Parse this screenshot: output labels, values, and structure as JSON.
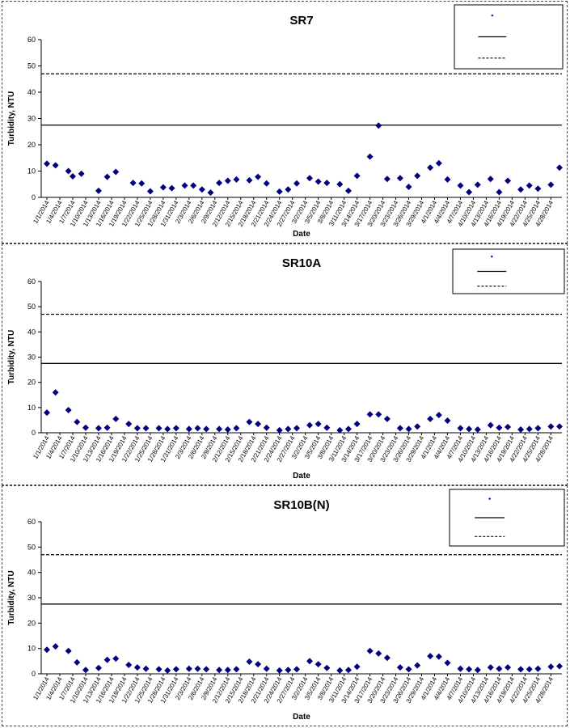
{
  "chart_data": [
    {
      "type": "scatter",
      "title": "SR7",
      "xlabel": "Date",
      "ylabel": "Turbidity, NTU",
      "ylim": [
        0,
        60
      ],
      "yticks": [
        0,
        10,
        20,
        30,
        40,
        50,
        60
      ],
      "grid": false,
      "legend_position": "top-right",
      "x_tick_labels": [
        "1/1/2014",
        "1/4/2014",
        "1/7/2014",
        "1/10/2014",
        "1/13/2014",
        "1/16/2014",
        "1/19/2014",
        "1/22/2014",
        "1/25/2014",
        "1/28/2014",
        "1/31/2014",
        "2/3/2014",
        "2/6/2014",
        "2/9/2014",
        "2/12/2014",
        "2/15/2014",
        "2/18/2014",
        "2/21/2014",
        "2/24/2014",
        "2/27/2014",
        "3/2/2014",
        "3/5/2014",
        "3/8/2014",
        "3/11/2014",
        "3/14/2014",
        "3/17/2014",
        "3/20/2014",
        "3/23/2014",
        "3/26/2014",
        "3/29/2014",
        "4/1/2014",
        "4/4/2014",
        "4/7/2014",
        "4/10/2014",
        "4/13/2014",
        "4/16/2014",
        "4/19/2014",
        "4/22/2014",
        "4/25/2014",
        "4/28/2014"
      ],
      "reference_lines": [
        {
          "value": 47,
          "style": "dashed",
          "color": "#000000"
        },
        {
          "value": 27.5,
          "style": "solid",
          "color": "#000000"
        }
      ],
      "series": [
        {
          "color": "#000080",
          "marker": "diamond",
          "points": [
            [
              "1/1/2014",
              12.8
            ],
            [
              "1/3/2014",
              12.2
            ],
            [
              "1/6/2014",
              10
            ],
            [
              "1/7/2014",
              8
            ],
            [
              "1/9/2014",
              9
            ],
            [
              "1/13/2014",
              2.5
            ],
            [
              "1/15/2014",
              7.8
            ],
            [
              "1/17/2014",
              9.7
            ],
            [
              "1/21/2014",
              5.5
            ],
            [
              "1/23/2014",
              5.3
            ],
            [
              "1/25/2014",
              2.3
            ],
            [
              "1/28/2014",
              3.8
            ],
            [
              "1/30/2014",
              3.5
            ],
            [
              "2/2/2014",
              4.5
            ],
            [
              "2/4/2014",
              4.5
            ],
            [
              "2/6/2014",
              3
            ],
            [
              "2/8/2014",
              1.8
            ],
            [
              "2/10/2014",
              5.5
            ],
            [
              "2/12/2014",
              6.3
            ],
            [
              "2/14/2014",
              6.8
            ],
            [
              "2/17/2014",
              6.5
            ],
            [
              "2/19/2014",
              7.8
            ],
            [
              "2/21/2014",
              5.3
            ],
            [
              "2/24/2014",
              2.2
            ],
            [
              "2/26/2014",
              3
            ],
            [
              "2/28/2014",
              5.3
            ],
            [
              "3/3/2014",
              7.3
            ],
            [
              "3/5/2014",
              6
            ],
            [
              "3/7/2014",
              5.5
            ],
            [
              "3/10/2014",
              5
            ],
            [
              "3/12/2014",
              2.5
            ],
            [
              "3/14/2014",
              8.2
            ],
            [
              "3/17/2014",
              15.5
            ],
            [
              "3/19/2014",
              27.3
            ],
            [
              "3/21/2014",
              7
            ],
            [
              "3/24/2014",
              7.3
            ],
            [
              "3/26/2014",
              4
            ],
            [
              "3/28/2014",
              8.2
            ],
            [
              "3/31/2014",
              11.3
            ],
            [
              "4/2/2014",
              13
            ],
            [
              "4/4/2014",
              6.8
            ],
            [
              "4/7/2014",
              4.5
            ],
            [
              "4/9/2014",
              2
            ],
            [
              "4/11/2014",
              4.8
            ],
            [
              "4/14/2014",
              7
            ],
            [
              "4/16/2014",
              2
            ],
            [
              "4/18/2014",
              6.3
            ],
            [
              "4/21/2014",
              3
            ],
            [
              "4/23/2014",
              4.5
            ],
            [
              "4/25/2014",
              3.3
            ],
            [
              "4/28/2014",
              4.8
            ],
            [
              "4/30/2014",
              11.3
            ]
          ]
        }
      ]
    },
    {
      "type": "scatter",
      "title": "SR10A",
      "xlabel": "Date",
      "ylabel": "Turbidity, NTU",
      "ylim": [
        0,
        60
      ],
      "yticks": [
        0,
        10,
        20,
        30,
        40,
        50,
        60
      ],
      "grid": false,
      "legend_position": "top-right",
      "x_tick_labels": [
        "1/1/2014",
        "1/4/2014",
        "1/7/2014",
        "1/10/2014",
        "1/13/2014",
        "1/16/2014",
        "1/19/2014",
        "1/22/2014",
        "1/25/2014",
        "1/28/2014",
        "1/31/2014",
        "2/3/2014",
        "2/6/2014",
        "2/9/2014",
        "2/12/2014",
        "2/15/2014",
        "2/18/2014",
        "2/21/2014",
        "2/24/2014",
        "2/27/2014",
        "3/2/2014",
        "3/5/2014",
        "3/8/2014",
        "3/11/2014",
        "3/14/2014",
        "3/17/2014",
        "3/20/2014",
        "3/23/2014",
        "3/26/2014",
        "3/29/2014",
        "4/1/2014",
        "4/4/2014",
        "4/7/2014",
        "4/10/2014",
        "4/13/2014",
        "4/16/2014",
        "4/19/2014",
        "4/22/2014",
        "4/25/2014",
        "4/28/2014"
      ],
      "reference_lines": [
        {
          "value": 47,
          "style": "dashed",
          "color": "#000000"
        },
        {
          "value": 27.5,
          "style": "solid",
          "color": "#000000"
        }
      ],
      "series": [
        {
          "color": "#000080",
          "marker": "diamond",
          "points": [
            [
              "1/1/2014",
              8
            ],
            [
              "1/3/2014",
              16
            ],
            [
              "1/6/2014",
              9
            ],
            [
              "1/8/2014",
              4.3
            ],
            [
              "1/10/2014",
              2
            ],
            [
              "1/13/2014",
              1.8
            ],
            [
              "1/15/2014",
              2
            ],
            [
              "1/17/2014",
              5.5
            ],
            [
              "1/20/2014",
              3.5
            ],
            [
              "1/22/2014",
              1.8
            ],
            [
              "1/24/2014",
              1.8
            ],
            [
              "1/27/2014",
              1.8
            ],
            [
              "1/29/2014",
              1.5
            ],
            [
              "1/31/2014",
              1.8
            ],
            [
              "2/3/2014",
              1.5
            ],
            [
              "2/5/2014",
              1.8
            ],
            [
              "2/7/2014",
              1.5
            ],
            [
              "2/10/2014",
              1.5
            ],
            [
              "2/12/2014",
              1.3
            ],
            [
              "2/14/2014",
              1.8
            ],
            [
              "2/17/2014",
              4.3
            ],
            [
              "2/19/2014",
              3.5
            ],
            [
              "2/21/2014",
              2
            ],
            [
              "2/24/2014",
              1
            ],
            [
              "2/26/2014",
              1.5
            ],
            [
              "2/28/2014",
              1.8
            ],
            [
              "3/3/2014",
              3
            ],
            [
              "3/5/2014",
              3.5
            ],
            [
              "3/7/2014",
              2
            ],
            [
              "3/10/2014",
              1
            ],
            [
              "3/12/2014",
              1.5
            ],
            [
              "3/14/2014",
              3.5
            ],
            [
              "3/17/2014",
              7.3
            ],
            [
              "3/19/2014",
              7.3
            ],
            [
              "3/21/2014",
              5.5
            ],
            [
              "3/24/2014",
              1.8
            ],
            [
              "3/26/2014",
              1.5
            ],
            [
              "3/28/2014",
              2.5
            ],
            [
              "3/31/2014",
              5.5
            ],
            [
              "4/2/2014",
              7
            ],
            [
              "4/4/2014",
              4.8
            ],
            [
              "4/7/2014",
              1.8
            ],
            [
              "4/9/2014",
              1.5
            ],
            [
              "4/11/2014",
              1.3
            ],
            [
              "4/14/2014",
              3
            ],
            [
              "4/16/2014",
              2
            ],
            [
              "4/18/2014",
              2.3
            ],
            [
              "4/21/2014",
              1.3
            ],
            [
              "4/23/2014",
              1.5
            ],
            [
              "4/25/2014",
              1.8
            ],
            [
              "4/28/2014",
              2.5
            ],
            [
              "4/30/2014",
              2.5
            ]
          ]
        }
      ]
    },
    {
      "type": "scatter",
      "title": "SR10B(N)",
      "xlabel": "Date",
      "ylabel": "Turbidity, NTU",
      "ylim": [
        0,
        60
      ],
      "yticks": [
        0,
        10,
        20,
        30,
        40,
        50,
        60
      ],
      "grid": false,
      "legend_position": "top-right",
      "x_tick_labels": [
        "1/1/2014",
        "1/4/2014",
        "1/7/2014",
        "1/10/2014",
        "1/13/2014",
        "1/16/2014",
        "1/19/2014",
        "1/22/2014",
        "1/25/2014",
        "1/28/2014",
        "1/31/2014",
        "2/3/2014",
        "2/6/2014",
        "2/9/2014",
        "2/12/2014",
        "2/15/2014",
        "2/18/2014",
        "2/21/2014",
        "2/24/2014",
        "2/27/2014",
        "3/2/2014",
        "3/5/2014",
        "3/8/2014",
        "3/11/2014",
        "3/14/2014",
        "3/17/2014",
        "3/20/2014",
        "3/23/2014",
        "3/26/2014",
        "3/29/2014",
        "4/1/2014",
        "4/4/2014",
        "4/7/2014",
        "4/10/2014",
        "4/13/2014",
        "4/16/2014",
        "4/19/2014",
        "4/22/2014",
        "4/25/2014",
        "4/28/2014"
      ],
      "reference_lines": [
        {
          "value": 47,
          "style": "dashed",
          "color": "#000000"
        },
        {
          "value": 27.5,
          "style": "solid",
          "color": "#000000"
        }
      ],
      "series": [
        {
          "color": "#000080",
          "marker": "diamond",
          "points": [
            [
              "1/1/2014",
              9.5
            ],
            [
              "1/3/2014",
              10.8
            ],
            [
              "1/6/2014",
              9
            ],
            [
              "1/8/2014",
              4.5
            ],
            [
              "1/10/2014",
              1.5
            ],
            [
              "1/13/2014",
              2.3
            ],
            [
              "1/15/2014",
              5.5
            ],
            [
              "1/17/2014",
              6
            ],
            [
              "1/20/2014",
              3.5
            ],
            [
              "1/22/2014",
              2.5
            ],
            [
              "1/24/2014",
              2
            ],
            [
              "1/27/2014",
              1.8
            ],
            [
              "1/29/2014",
              1.3
            ],
            [
              "1/31/2014",
              1.8
            ],
            [
              "2/3/2014",
              2
            ],
            [
              "2/5/2014",
              2
            ],
            [
              "2/7/2014",
              1.8
            ],
            [
              "2/10/2014",
              1.5
            ],
            [
              "2/12/2014",
              1.5
            ],
            [
              "2/14/2014",
              1.8
            ],
            [
              "2/17/2014",
              4.8
            ],
            [
              "2/19/2014",
              3.8
            ],
            [
              "2/21/2014",
              2
            ],
            [
              "2/24/2014",
              1.3
            ],
            [
              "2/26/2014",
              1.5
            ],
            [
              "2/28/2014",
              1.8
            ],
            [
              "3/3/2014",
              5
            ],
            [
              "3/5/2014",
              3.8
            ],
            [
              "3/7/2014",
              2.3
            ],
            [
              "3/10/2014",
              1.3
            ],
            [
              "3/12/2014",
              1.5
            ],
            [
              "3/14/2014",
              2.8
            ],
            [
              "3/17/2014",
              9
            ],
            [
              "3/19/2014",
              8
            ],
            [
              "3/21/2014",
              6.3
            ],
            [
              "3/24/2014",
              2.5
            ],
            [
              "3/26/2014",
              1.8
            ],
            [
              "3/28/2014",
              3.3
            ],
            [
              "3/31/2014",
              7
            ],
            [
              "4/2/2014",
              6.8
            ],
            [
              "4/4/2014",
              4.3
            ],
            [
              "4/7/2014",
              2
            ],
            [
              "4/9/2014",
              1.8
            ],
            [
              "4/11/2014",
              1.5
            ],
            [
              "4/14/2014",
              2.5
            ],
            [
              "4/16/2014",
              2
            ],
            [
              "4/18/2014",
              2.5
            ],
            [
              "4/21/2014",
              1.8
            ],
            [
              "4/23/2014",
              1.8
            ],
            [
              "4/25/2014",
              2
            ],
            [
              "4/28/2014",
              2.8
            ],
            [
              "4/30/2014",
              3
            ]
          ]
        }
      ]
    }
  ]
}
